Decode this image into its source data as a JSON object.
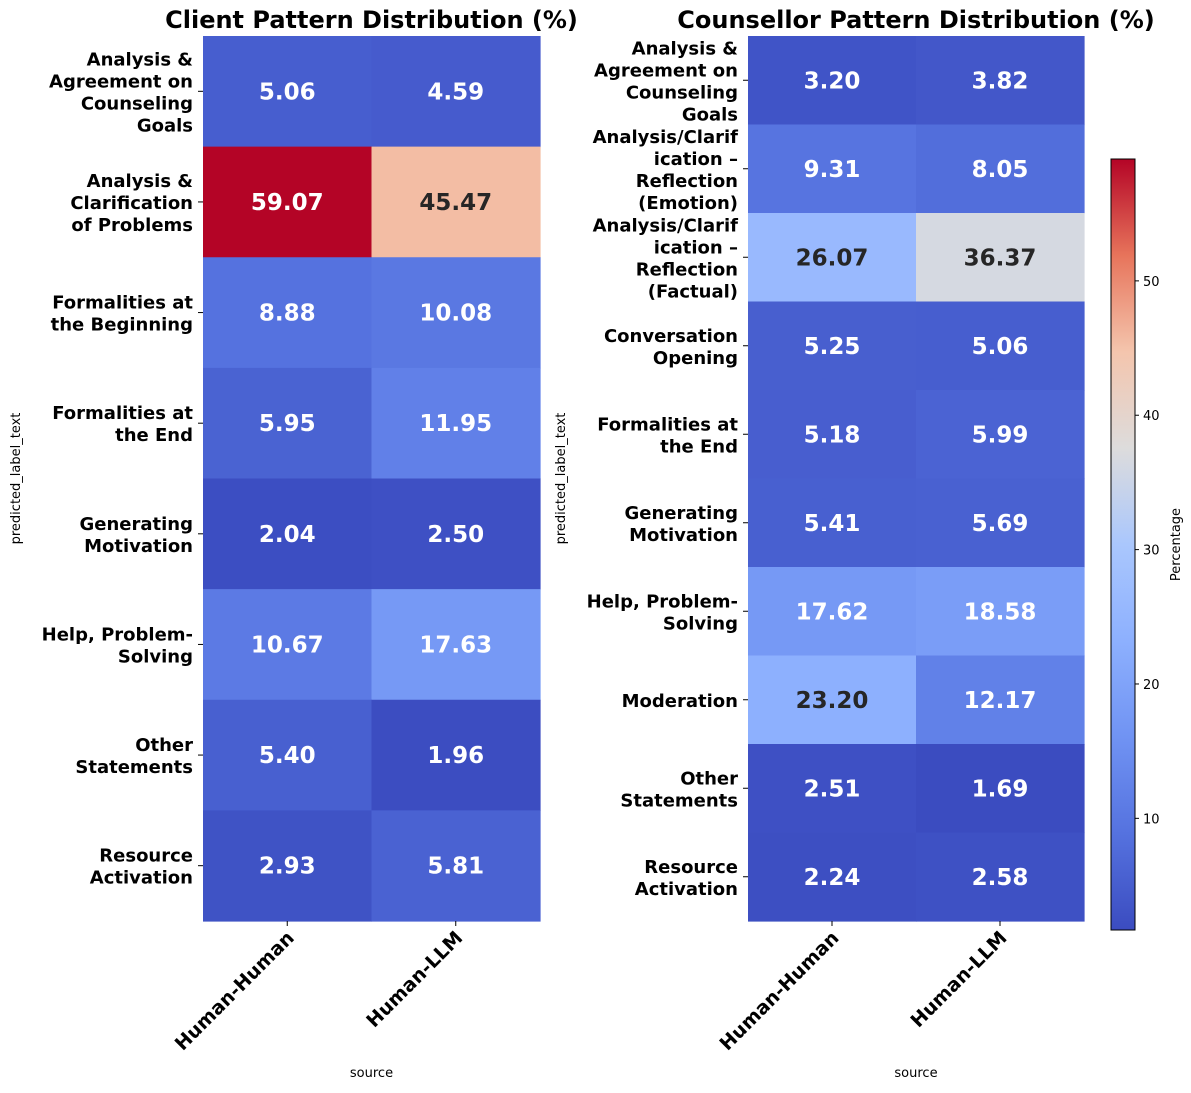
{
  "chart_data": [
    {
      "type": "heatmap",
      "title": "Client Pattern Distribution (%)",
      "xlabel": "source",
      "ylabel": "predicted_label_text",
      "columns": [
        "Human-Human",
        "Human-LLM"
      ],
      "rows": [
        {
          "label": "Analysis & Agreement on Counseling Goals",
          "label_lines": [
            "Analysis &",
            "Agreement on",
            "Counseling",
            "Goals"
          ],
          "values": [
            5.06,
            4.59
          ],
          "cell_text": [
            "5.06",
            "4.59"
          ]
        },
        {
          "label": "Analysis & Clarification of Problems",
          "label_lines": [
            "Analysis &",
            "Clarification",
            "of Problems"
          ],
          "values": [
            59.07,
            45.47
          ],
          "cell_text": [
            "59.07",
            "45.47"
          ]
        },
        {
          "label": "Formalities at the Beginning",
          "label_lines": [
            "Formalities at",
            "the Beginning"
          ],
          "values": [
            8.88,
            10.08
          ],
          "cell_text": [
            "8.88",
            "10.08"
          ]
        },
        {
          "label": "Formalities at the End",
          "label_lines": [
            "Formalities at",
            "the End"
          ],
          "values": [
            5.95,
            11.95
          ],
          "cell_text": [
            "5.95",
            "11.95"
          ]
        },
        {
          "label": "Generating Motivation",
          "label_lines": [
            "Generating",
            "Motivation"
          ],
          "values": [
            2.04,
            2.5
          ],
          "cell_text": [
            "2.04",
            "2.50"
          ]
        },
        {
          "label": "Help, Problem-Solving",
          "label_lines": [
            "Help, Problem-",
            "Solving"
          ],
          "values": [
            10.67,
            17.63
          ],
          "cell_text": [
            "10.67",
            "17.63"
          ]
        },
        {
          "label": "Other Statements",
          "label_lines": [
            "Other",
            "Statements"
          ],
          "values": [
            5.4,
            1.96
          ],
          "cell_text": [
            "5.40",
            "1.96"
          ]
        },
        {
          "label": "Resource Activation",
          "label_lines": [
            "Resource",
            "Activation"
          ],
          "values": [
            2.93,
            5.81
          ],
          "cell_text": [
            "2.93",
            "5.81"
          ]
        }
      ]
    },
    {
      "type": "heatmap",
      "title": "Counsellor Pattern Distribution (%)",
      "xlabel": "source",
      "ylabel": "predicted_label_text",
      "columns": [
        "Human-Human",
        "Human-LLM"
      ],
      "rows": [
        {
          "label": "Analysis & Agreement on Counseling Goals",
          "label_lines": [
            "Analysis &",
            "Agreement on",
            "Counseling",
            "Goals"
          ],
          "values": [
            3.2,
            3.82
          ],
          "cell_text": [
            "3.20",
            "3.82"
          ]
        },
        {
          "label": "Analysis/Clarification – Reflection (Emotion)",
          "label_lines": [
            "Analysis/Clarif",
            "ication –",
            "Reflection",
            "(Emotion)"
          ],
          "values": [
            9.31,
            8.05
          ],
          "cell_text": [
            "9.31",
            "8.05"
          ]
        },
        {
          "label": "Analysis/Clarification – Reflection (Factual)",
          "label_lines": [
            "Analysis/Clarif",
            "ication –",
            "Reflection",
            "(Factual)"
          ],
          "values": [
            26.07,
            36.37
          ],
          "cell_text": [
            "26.07",
            "36.37"
          ]
        },
        {
          "label": "Conversation Opening",
          "label_lines": [
            "Conversation",
            "Opening"
          ],
          "values": [
            5.25,
            5.06
          ],
          "cell_text": [
            "5.25",
            "5.06"
          ]
        },
        {
          "label": "Formalities at the End",
          "label_lines": [
            "Formalities at",
            "the End"
          ],
          "values": [
            5.18,
            5.99
          ],
          "cell_text": [
            "5.18",
            "5.99"
          ]
        },
        {
          "label": "Generating Motivation",
          "label_lines": [
            "Generating",
            "Motivation"
          ],
          "values": [
            5.41,
            5.69
          ],
          "cell_text": [
            "5.41",
            "5.69"
          ]
        },
        {
          "label": "Help, Problem-Solving",
          "label_lines": [
            "Help, Problem-",
            "Solving"
          ],
          "values": [
            17.62,
            18.58
          ],
          "cell_text": [
            "17.62",
            "18.58"
          ]
        },
        {
          "label": "Moderation",
          "label_lines": [
            "Moderation"
          ],
          "values": [
            23.2,
            12.17
          ],
          "cell_text": [
            "23.20",
            "12.17"
          ]
        },
        {
          "label": "Other Statements",
          "label_lines": [
            "Other",
            "Statements"
          ],
          "values": [
            2.51,
            1.69
          ],
          "cell_text": [
            "2.51",
            "1.69"
          ]
        },
        {
          "label": "Resource Activation",
          "label_lines": [
            "Resource",
            "Activation"
          ],
          "values": [
            2.24,
            2.58
          ],
          "cell_text": [
            "2.24",
            "2.58"
          ]
        }
      ]
    }
  ],
  "colorbar": {
    "label": "Percentage",
    "colormap": "coolwarm",
    "min": 1.69,
    "max": 59.07,
    "ticks": [
      10,
      20,
      30,
      40,
      50
    ],
    "tick_labels": [
      "10",
      "20",
      "30",
      "40",
      "50"
    ]
  }
}
